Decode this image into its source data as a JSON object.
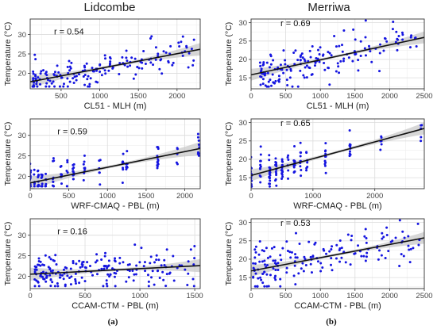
{
  "columns": [
    {
      "title": "Lidcombe",
      "label": "(a)"
    },
    {
      "title": "Merriwa",
      "label": "(b)"
    }
  ],
  "colors": {
    "point": "#1515e0",
    "line": "#111111",
    "band": "#c9c9c9",
    "grid": "#ebebeb",
    "frame": "#333333"
  },
  "chart_data": [
    {
      "type": "scatter",
      "site": "Lidcombe",
      "xlabel": "CL51 - MLH (m)",
      "ylabel": "Temperature (°C)",
      "annotation": "r = 0.54",
      "xlim": [
        100,
        2300
      ],
      "ylim": [
        16,
        34
      ],
      "xticks": [
        500,
        1000,
        1500,
        2000
      ],
      "yticks": [
        20,
        25,
        30
      ],
      "fit": {
        "x": [
          100,
          2300
        ],
        "y": [
          17.8,
          26.2
        ]
      },
      "seed": 11,
      "n": 170,
      "noise": 2.4,
      "dist": "cont",
      "xrange": [
        130,
        2250
      ]
    },
    {
      "type": "scatter",
      "site": "Merriwa",
      "xlabel": "CL51 - MLH (m)",
      "ylabel": "Temperature (°C)",
      "annotation": "r = 0.69",
      "xlim": [
        0,
        2500
      ],
      "ylim": [
        12,
        31
      ],
      "xticks": [
        0,
        500,
        1000,
        1500,
        2000,
        2500
      ],
      "yticks": [
        15,
        20,
        25,
        30
      ],
      "fit": {
        "x": [
          0,
          2500
        ],
        "y": [
          15.8,
          26.0
        ]
      },
      "seed": 23,
      "n": 170,
      "noise": 3.0,
      "dist": "cont",
      "xrange": [
        130,
        2400
      ]
    },
    {
      "type": "scatter",
      "site": "Lidcombe",
      "xlabel": "WRF-CMAQ - PBL (m)",
      "ylabel": "Temperature (°C)",
      "annotation": "r = 0.59",
      "xlim": [
        0,
        2200
      ],
      "ylim": [
        17,
        34
      ],
      "xticks": [
        0,
        500,
        1000,
        1500,
        2000
      ],
      "yticks": [
        20,
        25,
        30
      ],
      "fit": {
        "x": [
          0,
          2200
        ],
        "y": [
          18.4,
          26.8
        ]
      },
      "seed": 37,
      "n": 150,
      "noise": 2.2,
      "dist": "disc",
      "xlevels": [
        0,
        50,
        100,
        150,
        200,
        300,
        400,
        480,
        560,
        700,
        900,
        1200,
        1250,
        1650,
        1900,
        2180
      ]
    },
    {
      "type": "scatter",
      "site": "Merriwa",
      "xlabel": "WRF-CMAQ - PBL (m)",
      "ylabel": "Temperature (°C)",
      "annotation": "r = 0.65",
      "xlim": [
        0,
        2800
      ],
      "ylim": [
        12,
        31
      ],
      "xticks": [
        0,
        1000,
        2000
      ],
      "yticks": [
        15,
        20,
        25,
        30
      ],
      "fit": {
        "x": [
          0,
          2800
        ],
        "y": [
          15.6,
          28.4
        ]
      },
      "seed": 41,
      "n": 150,
      "noise": 2.6,
      "dist": "disc",
      "xlevels": [
        0,
        150,
        300,
        400,
        500,
        600,
        700,
        800,
        900,
        1200,
        1600,
        2100,
        2750
      ]
    },
    {
      "type": "scatter",
      "site": "Lidcombe",
      "xlabel": "CCAM-CTM - PBL (m)",
      "ylabel": "Temperature (°C)",
      "annotation": "r = 0.16",
      "xlim": [
        0,
        1550
      ],
      "ylim": [
        17,
        34
      ],
      "xticks": [
        0,
        500,
        1000,
        1500
      ],
      "yticks": [
        20,
        25,
        30
      ],
      "fit": {
        "x": [
          0,
          1550
        ],
        "y": [
          20.5,
          22.6
        ]
      },
      "seed": 53,
      "n": 200,
      "noise": 2.6,
      "dist": "cont",
      "xrange": [
        40,
        1500
      ]
    },
    {
      "type": "scatter",
      "site": "Merriwa",
      "xlabel": "CCAM-CTM - PBL (m)",
      "ylabel": "Temperature (°C)",
      "annotation": "r = 0.53",
      "xlim": [
        0,
        2500
      ],
      "ylim": [
        12,
        31
      ],
      "xticks": [
        0,
        500,
        1000,
        1500,
        2000,
        2500
      ],
      "yticks": [
        15,
        20,
        25,
        30
      ],
      "fit": {
        "x": [
          0,
          2500
        ],
        "y": [
          16.8,
          25.8
        ]
      },
      "seed": 67,
      "n": 170,
      "noise": 3.0,
      "dist": "cont",
      "xrange": [
        30,
        2450
      ]
    }
  ]
}
